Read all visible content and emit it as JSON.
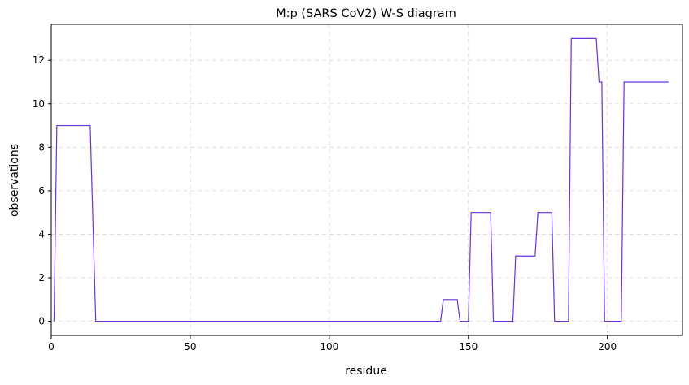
{
  "chart_data": {
    "type": "line",
    "title": "M:p (SARS CoV2) W-S diagram",
    "xlabel": "residue",
    "ylabel": "observations",
    "xlim": [
      0,
      227
    ],
    "ylim": [
      -0.65,
      13.65
    ],
    "x_ticks": [
      0,
      50,
      100,
      150,
      200
    ],
    "y_ticks": [
      0,
      2,
      4,
      6,
      8,
      10,
      12
    ],
    "grid": true,
    "series": [
      {
        "color": "#6a33d8",
        "points": [
          [
            1,
            0
          ],
          [
            2,
            9
          ],
          [
            14,
            9
          ],
          [
            16,
            0
          ],
          [
            140,
            0
          ],
          [
            141,
            1
          ],
          [
            146,
            1
          ],
          [
            147,
            0
          ],
          [
            150,
            0
          ],
          [
            151,
            5
          ],
          [
            158,
            5
          ],
          [
            159,
            0
          ],
          [
            166,
            0
          ],
          [
            167,
            3
          ],
          [
            174,
            3
          ],
          [
            175,
            5
          ],
          [
            180,
            5
          ],
          [
            181,
            0
          ],
          [
            186,
            0
          ],
          [
            187,
            13
          ],
          [
            196,
            13
          ],
          [
            197,
            11
          ],
          [
            198,
            11
          ],
          [
            199,
            0
          ],
          [
            205,
            0
          ],
          [
            206,
            11
          ],
          [
            222,
            11
          ]
        ]
      }
    ]
  }
}
